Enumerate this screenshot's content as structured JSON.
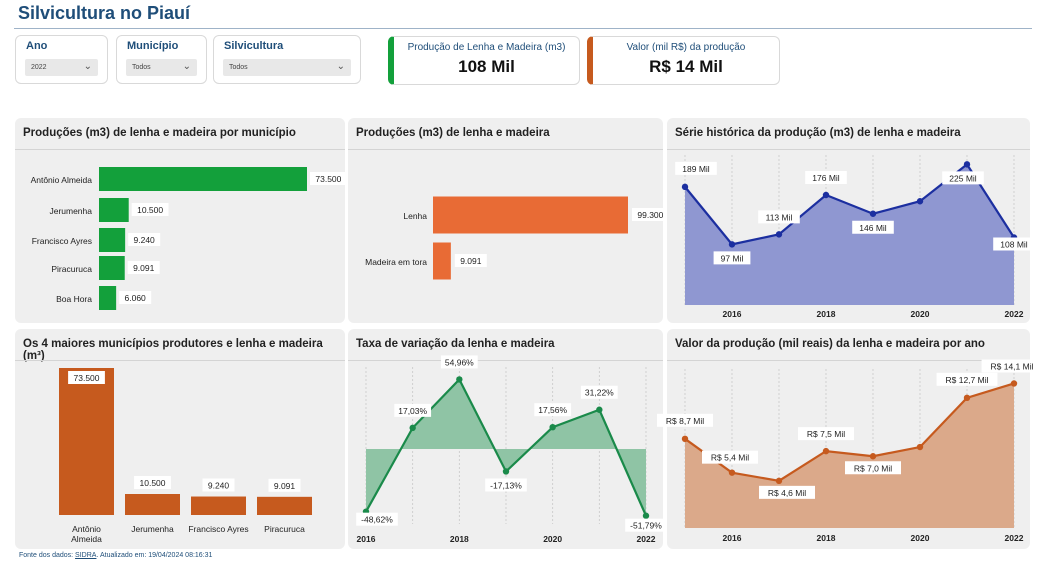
{
  "page_title": "Silvicultura no Piauí",
  "filters": [
    {
      "label": "Ano",
      "value": "2022"
    },
    {
      "label": "Município",
      "value": "Todos"
    },
    {
      "label": "Silvicultura",
      "value": "Todos"
    }
  ],
  "kpis": [
    {
      "label": "Produção de Lenha e Madeira (m3)",
      "value": "108 Mil",
      "color": "#13a03b"
    },
    {
      "label": "Valor (mil R$) da produção",
      "value": "R$ 14 Mil",
      "color": "#c65a1e"
    }
  ],
  "footer": {
    "source_label": "Fonte dos dados:",
    "source": "SIDRA",
    "updated": ". Atualizado em: 19/04/2024 08:16:31"
  },
  "colors": {
    "green": "#13a03b",
    "orange": "#e86b35",
    "blue": "#1c2fa0",
    "blue_fill": "#8f97d1",
    "teal": "#1a8a4a",
    "teal_fill": "#8fc4a5",
    "rust": "#c65a1e",
    "rust_fill": "#dba98a"
  },
  "chart_data": [
    {
      "type": "bar",
      "orientation": "horizontal",
      "title": "Produções (m3) de lenha e madeira por município",
      "categories": [
        "Antônio Almeida",
        "Jerumenha",
        "Francisco Ayres",
        "Piracuruca",
        "Boa Hora"
      ],
      "values": [
        73500,
        10500,
        9240,
        9091,
        6060
      ],
      "labels": [
        "73.500",
        "10.500",
        "9.240",
        "9.091",
        "6.060"
      ]
    },
    {
      "type": "bar",
      "orientation": "horizontal",
      "title": "Produções (m3) de lenha e madeira",
      "categories": [
        "Lenha",
        "Madeira em tora"
      ],
      "values": [
        99300,
        9091
      ],
      "labels": [
        "99.300",
        "9.091"
      ]
    },
    {
      "type": "area",
      "title": "Série histórica da produção (m3) de lenha e madeira",
      "x": [
        2015,
        2016,
        2017,
        2018,
        2019,
        2020,
        2021,
        2022
      ],
      "values": [
        189,
        97,
        113,
        176,
        146,
        166,
        225,
        108
      ],
      "labels": [
        "189 Mil",
        "97 Mil",
        "113 Mil",
        "176 Mil",
        "146 Mil",
        "",
        "225 Mil",
        "108 Mil"
      ],
      "xticks": [
        "2016",
        "2018",
        "2020",
        "2022"
      ],
      "ylim": [
        0,
        240
      ]
    },
    {
      "type": "bar",
      "orientation": "vertical",
      "title": "Os 4 maiores municípios produtores e lenha e madeira (m³)",
      "categories": [
        "Antônio Almeida",
        "Jerumenha",
        "Francisco Ayres",
        "Piracuruca"
      ],
      "values": [
        73500,
        10500,
        9240,
        9091
      ],
      "labels": [
        "73.500",
        "10.500",
        "9.240",
        "9.091"
      ]
    },
    {
      "type": "area",
      "title": "Taxa de variação da lenha e madeira",
      "x": [
        2016,
        2017,
        2018,
        2019,
        2020,
        2021,
        2022
      ],
      "values": [
        -48.62,
        17.03,
        54.96,
        -17.13,
        17.56,
        31.22,
        -51.79
      ],
      "labels": [
        "-48,62%",
        "17,03%",
        "54,96%",
        "-17,13%",
        "17,56%",
        "31,22%",
        "-51,79%"
      ],
      "xticks": [
        "2016",
        "2018",
        "2020",
        "2022"
      ],
      "ylim": [
        -52,
        60
      ]
    },
    {
      "type": "area",
      "title": "Valor da produção (mil reais) da lenha e madeira por ano",
      "x": [
        2015,
        2016,
        2017,
        2018,
        2019,
        2020,
        2021,
        2022
      ],
      "values": [
        8.7,
        5.4,
        4.6,
        7.5,
        7.0,
        7.9,
        12.7,
        14.1
      ],
      "labels": [
        "R$ 8,7 Mil",
        "R$ 5,4 Mil",
        "R$ 4,6 Mil",
        "R$ 7,5 Mil",
        "R$ 7,0 Mil",
        "",
        "R$ 12,7 Mil",
        "R$ 14,1 Mil"
      ],
      "xticks": [
        "2016",
        "2018",
        "2020",
        "2022"
      ],
      "ylim": [
        0,
        16
      ]
    }
  ]
}
